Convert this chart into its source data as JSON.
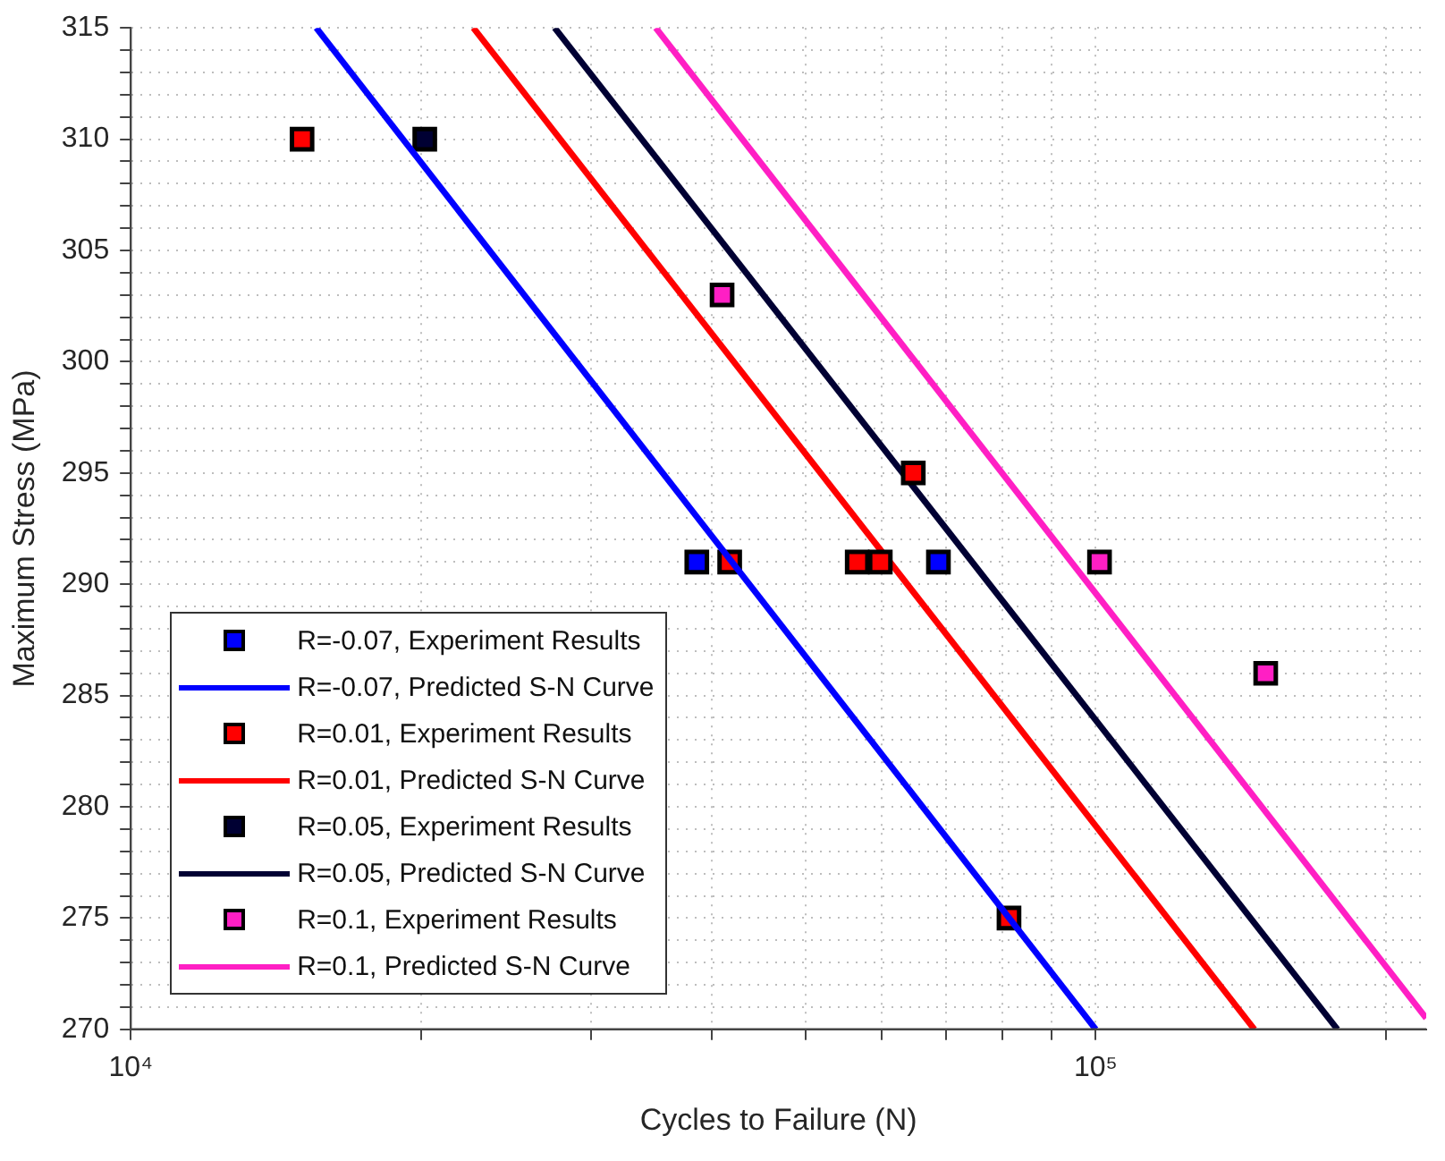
{
  "chart_data": {
    "type": "scatter",
    "xlabel": "Cycles to Failure (N)",
    "ylabel": "Maximum Stress (MPa)",
    "log": "x",
    "xlim": [
      10000,
      220000
    ],
    "xticks": [
      {
        "value": 10000,
        "label": "10⁴"
      },
      {
        "value": 20000,
        "label": null
      },
      {
        "value": 30000,
        "label": null
      },
      {
        "value": 40000,
        "label": null
      },
      {
        "value": 50000,
        "label": null
      },
      {
        "value": 60000,
        "label": null
      },
      {
        "value": 70000,
        "label": null
      },
      {
        "value": 80000,
        "label": null
      },
      {
        "value": 90000,
        "label": null
      },
      {
        "value": 100000,
        "label": "10⁵"
      },
      {
        "value": 200000,
        "label": null
      }
    ],
    "ylim": [
      270,
      315
    ],
    "yticks": [
      270,
      {
        "value": 271,
        "label": null
      },
      {
        "value": 272,
        "label": null
      },
      {
        "value": 273,
        "label": null
      },
      {
        "value": 274,
        "label": null
      },
      275,
      {
        "value": 276,
        "label": null
      },
      {
        "value": 277,
        "label": null
      },
      {
        "value": 278,
        "label": null
      },
      {
        "value": 279,
        "label": null
      },
      280,
      {
        "value": 281,
        "label": null
      },
      {
        "value": 282,
        "label": null
      },
      {
        "value": 283,
        "label": null
      },
      {
        "value": 284,
        "label": null
      },
      285,
      {
        "value": 286,
        "label": null
      },
      {
        "value": 287,
        "label": null
      },
      {
        "value": 288,
        "label": null
      },
      {
        "value": 289,
        "label": null
      },
      290,
      {
        "value": 291,
        "label": null
      },
      {
        "value": 292,
        "label": null
      },
      {
        "value": 293,
        "label": null
      },
      {
        "value": 294,
        "label": null
      },
      295,
      {
        "value": 296,
        "label": null
      },
      {
        "value": 297,
        "label": null
      },
      {
        "value": 298,
        "label": null
      },
      {
        "value": 299,
        "label": null
      },
      300,
      {
        "value": 301,
        "label": null
      },
      {
        "value": 302,
        "label": null
      },
      {
        "value": 303,
        "label": null
      },
      {
        "value": 304,
        "label": null
      },
      305,
      {
        "value": 306,
        "label": null
      },
      {
        "value": 307,
        "label": null
      },
      {
        "value": 308,
        "label": null
      },
      {
        "value": 309,
        "label": null
      },
      310,
      {
        "value": 311,
        "label": null
      },
      {
        "value": 312,
        "label": null
      },
      {
        "value": 313,
        "label": null
      },
      {
        "value": 314,
        "label": null
      },
      315
    ],
    "grid": true,
    "legend": "bottom left",
    "series": [
      {
        "name": "R=-0.07, Experiment Results",
        "type": "scatter",
        "marker": "square",
        "color": "#0000ff",
        "x": [
          38600,
          68700
        ],
        "values": [
          291,
          291
        ]
      },
      {
        "name": "R=-0.07, Predicted S-N Curve",
        "type": "line",
        "color": "#0000ff",
        "x": [
          15570,
          100000
        ],
        "values": [
          315,
          270
        ]
      },
      {
        "name": "R=0.01, Experiment Results",
        "type": "scatter",
        "marker": "square",
        "color": "#ff0000",
        "x": [
          15050,
          41750,
          56600,
          59800,
          64700,
          81300
        ],
        "values": [
          310,
          291,
          291,
          291,
          295,
          275
        ]
      },
      {
        "name": "R=0.01, Predicted S-N Curve",
        "type": "line",
        "color": "#ff0000",
        "x": [
          22650,
          146000
        ],
        "values": [
          315,
          270
        ]
      },
      {
        "name": "R=0.05, Experiment Results",
        "type": "scatter",
        "marker": "square",
        "color": "#000033",
        "x": [
          20170
        ],
        "values": [
          310
        ]
      },
      {
        "name": "R=0.05, Predicted S-N Curve",
        "type": "line",
        "color": "#000033",
        "x": [
          27500,
          178000
        ],
        "values": [
          315,
          270
        ]
      },
      {
        "name": "R=0.1, Experiment Results",
        "type": "scatter",
        "marker": "square",
        "color": "#ff1fc4",
        "x": [
          41000,
          100900,
          150000
        ],
        "values": [
          303,
          291,
          286
        ]
      },
      {
        "name": "R=0.1, Predicted S-N Curve",
        "type": "line",
        "color": "#ff1fc4",
        "x": [
          35000,
          220000
        ],
        "values": [
          315,
          270.5
        ]
      }
    ]
  }
}
